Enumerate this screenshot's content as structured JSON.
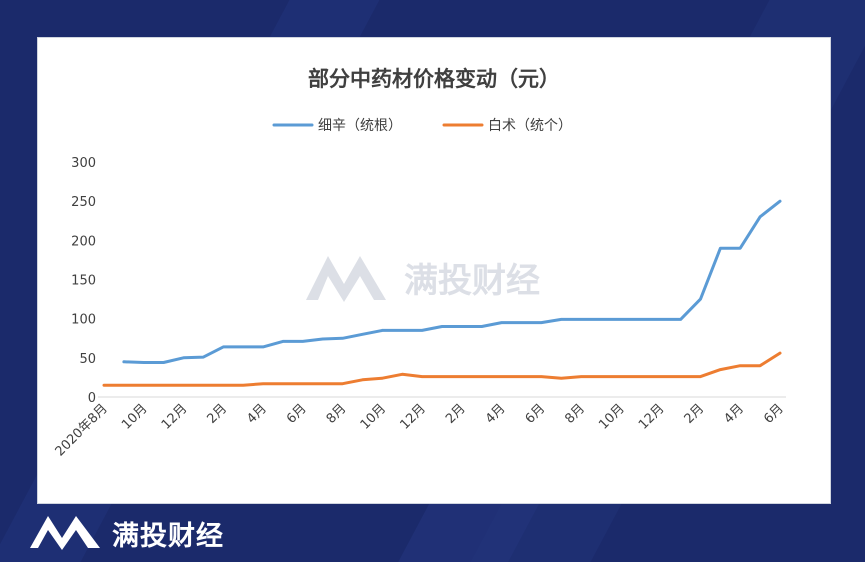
{
  "brand": {
    "name": "满投财经",
    "watermark": "满投财经",
    "color_bg": "#1b2a6b"
  },
  "chart_data": {
    "type": "line",
    "title": "部分中药材价格变动（元）",
    "xlabel": "",
    "ylabel": "",
    "ylim": [
      0,
      300
    ],
    "yticks": [
      "0",
      "50",
      "100",
      "150",
      "200",
      "250",
      "300"
    ],
    "grid": false,
    "legend_position": "top",
    "x_tick_labels": [
      "2020年8月",
      "10月",
      "12月",
      "2月",
      "4月",
      "6月",
      "8月",
      "10月",
      "12月",
      "2月",
      "4月",
      "6月",
      "8月",
      "10月",
      "12月",
      "2月",
      "4月",
      "6月"
    ],
    "x": [
      "2020-08",
      "2020-09",
      "2020-10",
      "2020-11",
      "2020-12",
      "2021-01",
      "2021-02",
      "2021-03",
      "2021-04",
      "2021-05",
      "2021-06",
      "2021-07",
      "2021-08",
      "2021-09",
      "2021-10",
      "2021-11",
      "2021-12",
      "2022-01",
      "2022-02",
      "2022-03",
      "2022-04",
      "2022-05",
      "2022-06",
      "2022-07",
      "2022-08",
      "2022-09",
      "2022-10",
      "2022-11",
      "2022-12",
      "2023-01",
      "2023-02",
      "2023-03",
      "2023-04",
      "2023-05",
      "2023-06"
    ],
    "series": [
      {
        "name": "细辛（统根）",
        "color": "#5b9bd5",
        "values": [
          null,
          45,
          44,
          44,
          50,
          51,
          64,
          64,
          64,
          71,
          71,
          74,
          75,
          80,
          85,
          85,
          85,
          90,
          90,
          90,
          95,
          95,
          95,
          99,
          99,
          99,
          99,
          99,
          99,
          99,
          125,
          190,
          190,
          230,
          250
        ]
      },
      {
        "name": "白术（统个）",
        "color": "#ed7d31",
        "values": [
          15,
          15,
          15,
          15,
          15,
          15,
          15,
          15,
          17,
          17,
          17,
          17,
          17,
          22,
          24,
          29,
          26,
          26,
          26,
          26,
          26,
          26,
          26,
          24,
          26,
          26,
          26,
          26,
          26,
          26,
          26,
          35,
          40,
          40,
          56
        ]
      }
    ]
  }
}
